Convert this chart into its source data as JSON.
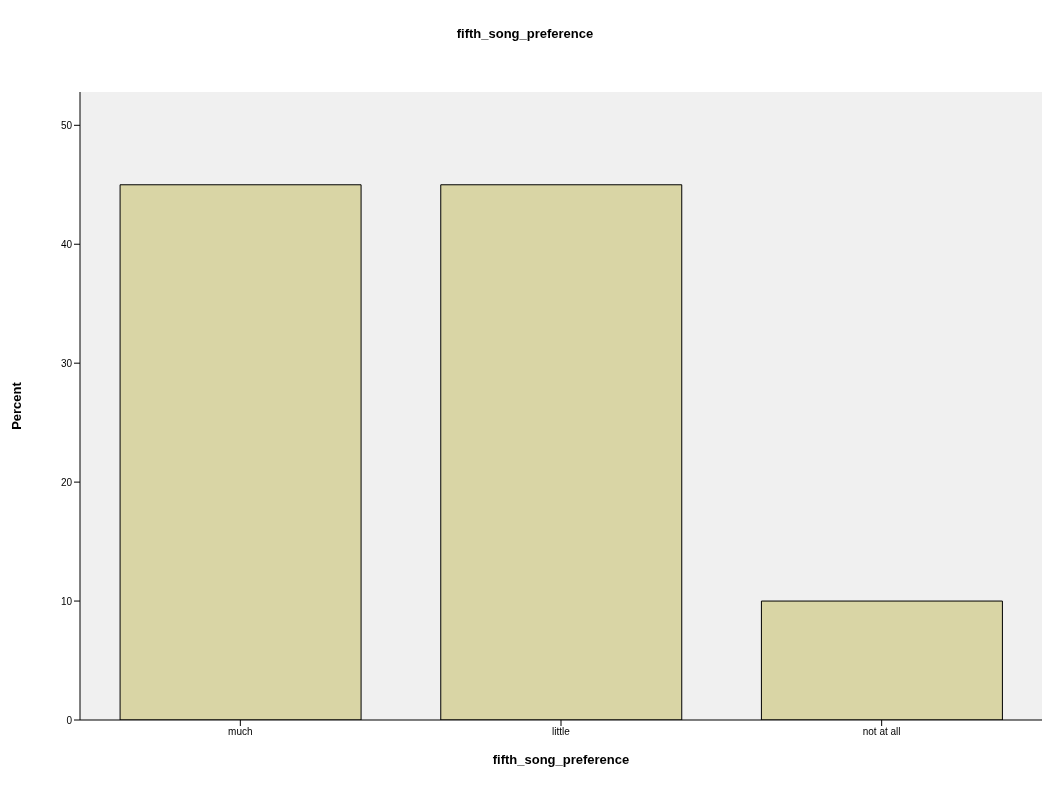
{
  "chart_data": {
    "type": "bar",
    "title": "fifth_song_preference",
    "xlabel": "fifth_song_preference",
    "ylabel": "Percent",
    "categories": [
      "much",
      "little",
      "not at all"
    ],
    "values": [
      45,
      45,
      10
    ],
    "color": "#d9d5a5",
    "ylim": [
      0,
      52.8
    ],
    "yticks": [
      0,
      10,
      20,
      30,
      40,
      50
    ],
    "grid": false
  }
}
